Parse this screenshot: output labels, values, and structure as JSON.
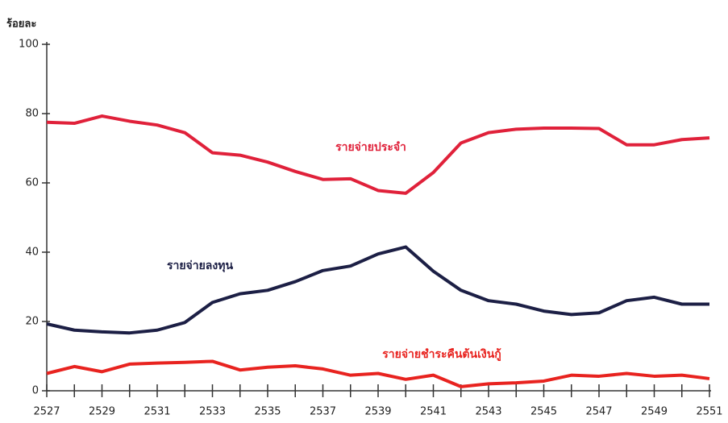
{
  "chart_data": {
    "type": "line",
    "ylabel": "ร้อยละ",
    "x": [
      2527,
      2528,
      2529,
      2530,
      2531,
      2532,
      2533,
      2534,
      2535,
      2536,
      2537,
      2538,
      2539,
      2540,
      2541,
      2542,
      2543,
      2544,
      2545,
      2546,
      2547,
      2548,
      2549,
      2550,
      2551
    ],
    "series": [
      {
        "name": "รายจ่ายประจำ",
        "color": "#e0213a",
        "values": [
          77.5,
          77.2,
          79.3,
          77.8,
          76.7,
          74.5,
          68.7,
          68,
          66,
          63.3,
          61,
          61.2,
          57.8,
          57,
          63,
          71.5,
          74.5,
          75.5,
          75.8,
          75.8,
          75.7,
          71,
          71,
          72.5,
          73
        ]
      },
      {
        "name": "รายจ่ายลงทุน",
        "color": "#1c1f45",
        "values": [
          19.3,
          17.5,
          17,
          16.7,
          17.5,
          19.7,
          25.5,
          28,
          29,
          31.5,
          34.7,
          36,
          39.5,
          41.5,
          34.5,
          29,
          26,
          25,
          23,
          22,
          22.5,
          26,
          27,
          25,
          25
        ]
      },
      {
        "name": "รายจ่ายชำระคืนต้นเงินกู้",
        "color": "#e8231f",
        "values": [
          5,
          7,
          5.5,
          7.7,
          8,
          8.2,
          8.5,
          6,
          6.8,
          7.2,
          6.3,
          4.5,
          5,
          3.3,
          4.5,
          1.2,
          2,
          2.3,
          2.8,
          4.5,
          4.2,
          5,
          4.2,
          4.5,
          3.5
        ]
      }
    ],
    "xlim": [
      2527,
      2551
    ],
    "xticks": [
      2527,
      2529,
      2531,
      2533,
      2535,
      2537,
      2539,
      2541,
      2543,
      2545,
      2547,
      2549,
      2551
    ],
    "xminorticks": [
      2527,
      2528,
      2529,
      2530,
      2531,
      2532,
      2533,
      2534,
      2535,
      2536,
      2537,
      2538,
      2539,
      2540,
      2541,
      2542,
      2543,
      2544,
      2545,
      2546,
      2547,
      2548,
      2549,
      2550,
      2551
    ],
    "ylim": [
      0,
      100
    ],
    "yticks": [
      0,
      20,
      40,
      60,
      80,
      100
    ]
  }
}
